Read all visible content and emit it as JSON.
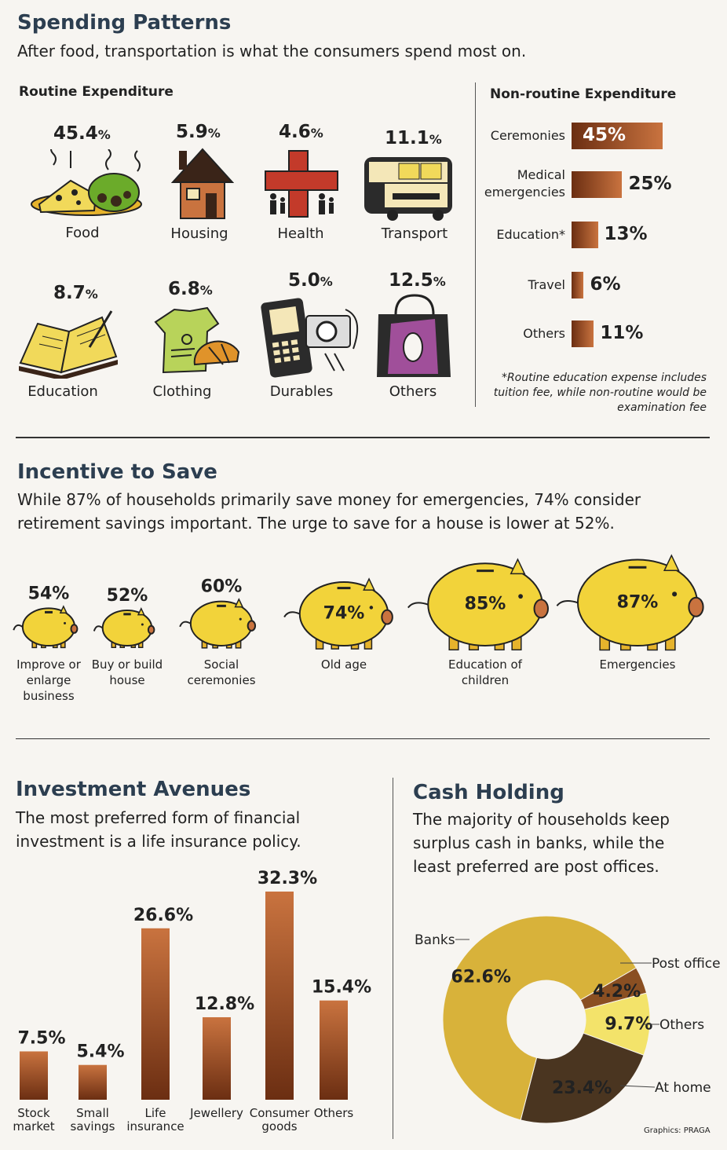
{
  "spending": {
    "title": "Spending Patterns",
    "subtitle": "After food, transportation is what the consumers spend most on.",
    "routine_heading": "Routine Expenditure",
    "nonroutine_heading": "Non-routine Expenditure",
    "footnote": "*Routine education expense includes tuition fee, while non-routine would be examination fee"
  },
  "routine_items": [
    {
      "value": "45.4",
      "unit": "%",
      "label": "Food",
      "icon": "food-icon"
    },
    {
      "value": "5.9",
      "unit": "%",
      "label": "Housing",
      "icon": "house-icon"
    },
    {
      "value": "4.6",
      "unit": "%",
      "label": "Health",
      "icon": "health-cross-icon"
    },
    {
      "value": "11.1",
      "unit": "%",
      "label": "Transport",
      "icon": "bus-icon"
    },
    {
      "value": "8.7",
      "unit": "%",
      "label": "Education",
      "icon": "book-icon"
    },
    {
      "value": "6.8",
      "unit": "%",
      "label": "Clothing",
      "icon": "clothing-icon"
    },
    {
      "value": "5.0",
      "unit": "%",
      "label": "Durables",
      "icon": "phone-camera-icon"
    },
    {
      "value": "12.5",
      "unit": "%",
      "label": "Others",
      "icon": "shopping-bag-icon"
    }
  ],
  "incentive": {
    "title": "Incentive to Save",
    "subtitle_line1": "While 87% of households primarily save money for emergencies, 74% consider",
    "subtitle_line2": "retirement savings important. The urge to save for a house is lower at 52%."
  },
  "investment": {
    "title": "Investment Avenues",
    "subtitle_line1": "The most preferred form of financial",
    "subtitle_line2": "investment is a life insurance policy."
  },
  "cash": {
    "title": "Cash Holding",
    "subtitle_line1": "The majority of households keep",
    "subtitle_line2": "surplus cash in banks, while the",
    "subtitle_line3": "least preferred are post offices."
  },
  "credit": "Graphics: PRAGA",
  "colors": {
    "heading": "#2c3e50",
    "bar_dark": "#6b2e12",
    "bar_light": "#c9733f",
    "pig_yellow": "#f2d33a",
    "donut_banks": "#d8b23a",
    "donut_home": "#4a3520",
    "donut_post": "#8a4f22",
    "donut_others": "#f3e36a"
  },
  "chart_data": [
    {
      "type": "bar",
      "orientation": "horizontal",
      "categories": [
        "Ceremonies",
        "Medical emergencies",
        "Education*",
        "Travel",
        "Others"
      ],
      "values": [
        45,
        25,
        13,
        6,
        11
      ],
      "value_labels": [
        "45%",
        "25%",
        "13%",
        "6%",
        "11%"
      ]
    },
    {
      "type": "bar",
      "categories": [
        "Improve or enlarge business",
        "Buy or build house",
        "Social ceremonies",
        "Old age",
        "Education of children",
        "Emergencies"
      ],
      "values": [
        54,
        52,
        60,
        74,
        85,
        87
      ],
      "value_labels": [
        "54%",
        "52%",
        "60%",
        "74%",
        "85%",
        "87%"
      ]
    },
    {
      "type": "bar",
      "categories": [
        "Stock market",
        "Small savings",
        "Life insurance",
        "Jewellery",
        "Consumer goods",
        "Others"
      ],
      "category_lines": [
        [
          "Stock",
          "market"
        ],
        [
          "Small",
          "savings"
        ],
        [
          "Life",
          "insurance"
        ],
        [
          "Jewellery"
        ],
        [
          "Consumer",
          "goods"
        ],
        [
          "Others"
        ]
      ],
      "values": [
        7.5,
        5.4,
        26.6,
        12.8,
        32.3,
        15.4
      ],
      "value_labels": [
        "7.5%",
        "5.4%",
        "26.6%",
        "12.8%",
        "32.3%",
        "15.4%"
      ]
    },
    {
      "type": "pie",
      "donut": true,
      "categories": [
        "Post office",
        "Others",
        "At home",
        "Banks"
      ],
      "values": [
        4.2,
        9.7,
        23.4,
        62.6
      ],
      "value_labels": [
        "4.2%",
        "9.7%",
        "23.4%",
        "62.6%"
      ]
    }
  ]
}
